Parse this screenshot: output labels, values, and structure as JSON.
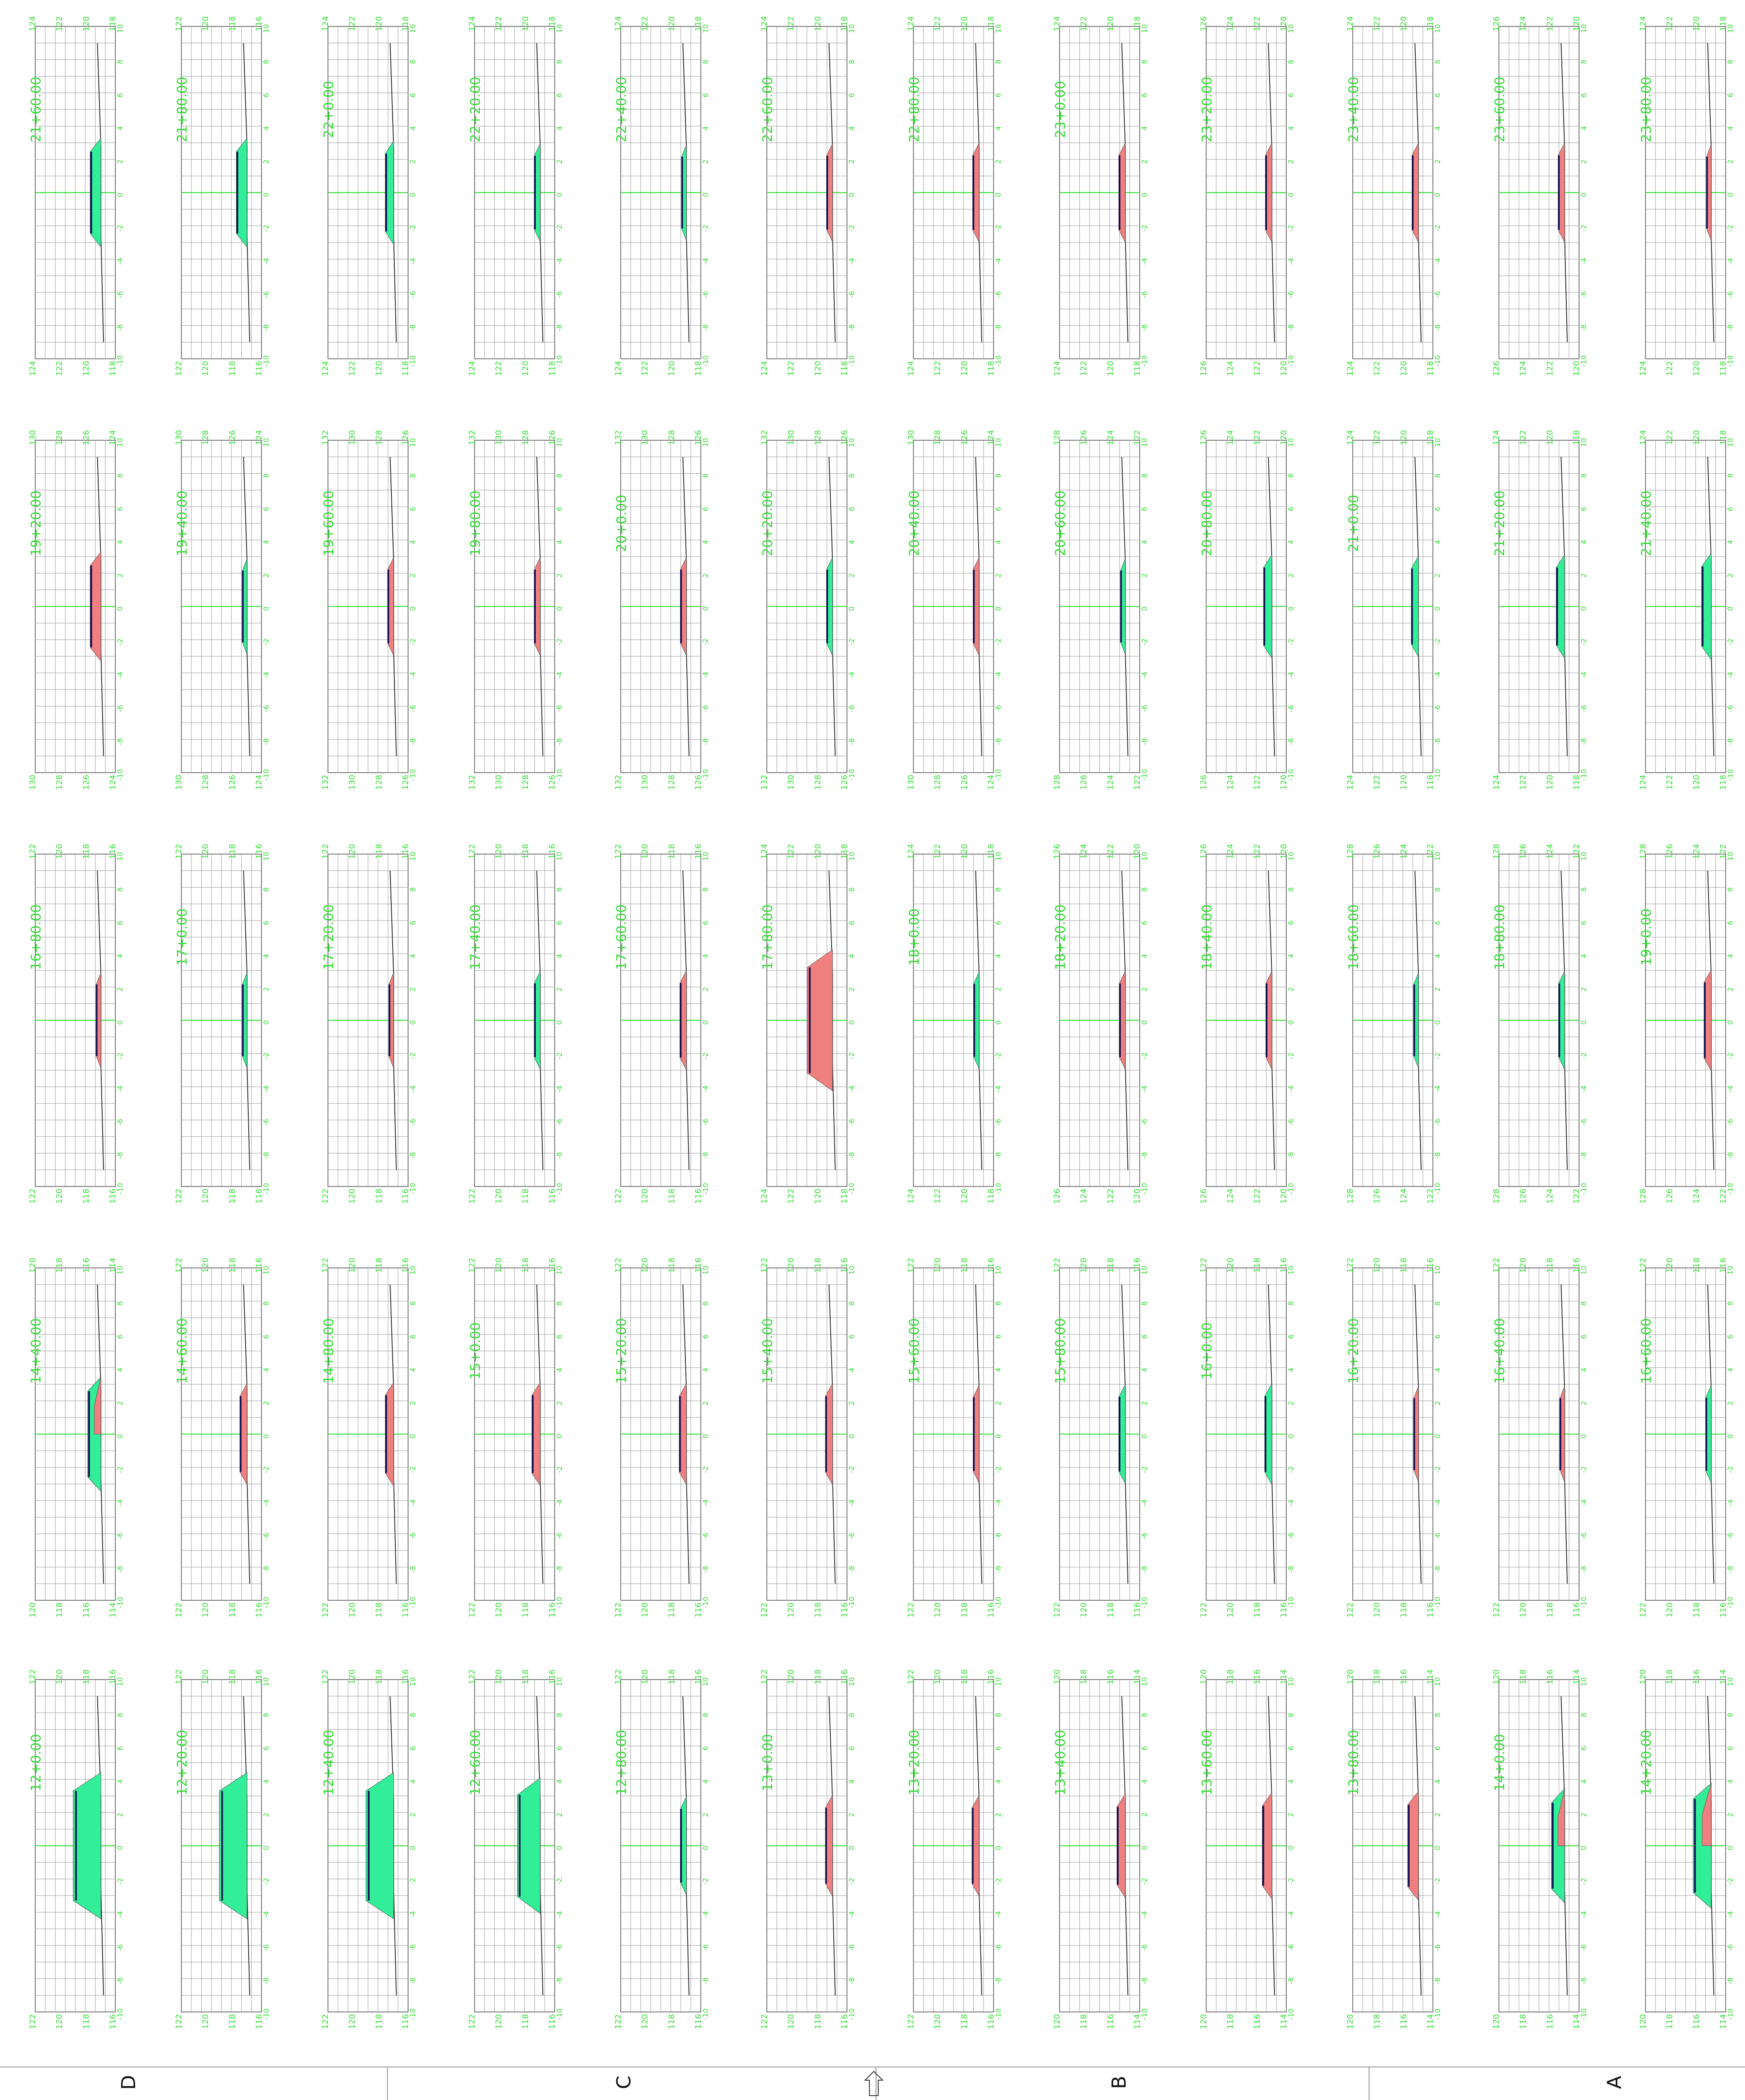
{
  "sheet": {
    "zone_labels": [
      "D",
      "C",
      "B",
      "A"
    ],
    "north_arrow": "north-arrow-icon",
    "colors": {
      "grid": "#9a9a9a",
      "axis": "#22dd22",
      "label": "#33dd33",
      "ground": "#303030",
      "design": "#101050",
      "fill_area": "#33ee99",
      "cut_area": "#f08080"
    }
  },
  "sections": [
    {
      "station": "12+0.00",
      "left_elev": [
        "122",
        "120",
        "118",
        "116"
      ],
      "right_elev": [
        "122",
        "120",
        "118",
        "116"
      ],
      "type": "fill",
      "size": 1.0
    },
    {
      "station": "12+20.00",
      "left_elev": [
        "122",
        "120",
        "118",
        "116"
      ],
      "right_elev": [
        "122",
        "120",
        "118",
        "116"
      ],
      "type": "fill",
      "size": 1.0
    },
    {
      "station": "12+40.00",
      "left_elev": [
        "122",
        "120",
        "118",
        "116"
      ],
      "right_elev": [
        "122",
        "120",
        "118",
        "116"
      ],
      "type": "fill",
      "size": 1.0
    },
    {
      "station": "12+60.00",
      "left_elev": [
        "122",
        "120",
        "118",
        "116"
      ],
      "right_elev": [
        "122",
        "120",
        "118",
        "116"
      ],
      "type": "fill",
      "size": 0.8
    },
    {
      "station": "12+80.00",
      "left_elev": [
        "122",
        "120",
        "118",
        "116"
      ],
      "right_elev": [
        "122",
        "120",
        "118",
        "116"
      ],
      "type": "fill",
      "size": 0.1
    },
    {
      "station": "13+0.00",
      "left_elev": [
        "122",
        "120",
        "118",
        "116"
      ],
      "right_elev": [
        "122",
        "120",
        "118",
        "116"
      ],
      "type": "cut",
      "size": 0.15
    },
    {
      "station": "13+20.00",
      "left_elev": [
        "122",
        "120",
        "118",
        "116"
      ],
      "right_elev": [
        "122",
        "120",
        "118",
        "116"
      ],
      "type": "cut",
      "size": 0.15
    },
    {
      "station": "13+40.00",
      "left_elev": [
        "120",
        "118",
        "116",
        "114"
      ],
      "right_elev": [
        "120",
        "118",
        "116",
        "114"
      ],
      "type": "cut",
      "size": 0.2
    },
    {
      "station": "13+60.00",
      "left_elev": [
        "120",
        "118",
        "116",
        "114"
      ],
      "right_elev": [
        "120",
        "118",
        "116",
        "114"
      ],
      "type": "cut",
      "size": 0.25
    },
    {
      "station": "13+80.00",
      "left_elev": [
        "120",
        "118",
        "116",
        "114"
      ],
      "right_elev": [
        "120",
        "118",
        "116",
        "114"
      ],
      "type": "cut",
      "size": 0.3
    },
    {
      "station": "14+0.00",
      "left_elev": [
        "120",
        "118",
        "116",
        "114"
      ],
      "right_elev": [
        "120",
        "118",
        "116",
        "114"
      ],
      "type": "mixed",
      "size": 0.4
    },
    {
      "station": "14+20.00",
      "left_elev": [
        "120",
        "118",
        "116",
        "114"
      ],
      "right_elev": [
        "120",
        "118",
        "116",
        "114"
      ],
      "type": "mixed",
      "size": 0.6
    },
    {
      "station": "14+40.00",
      "left_elev": [
        "120",
        "118",
        "116",
        "114"
      ],
      "right_elev": [
        "120",
        "118",
        "116",
        "114"
      ],
      "type": "mixed",
      "size": 0.4
    },
    {
      "station": "14+60.00",
      "left_elev": [
        "122",
        "120",
        "118",
        "116"
      ],
      "right_elev": [
        "122",
        "120",
        "118",
        "116"
      ],
      "type": "cut",
      "size": 0.15
    },
    {
      "station": "14+80.00",
      "left_elev": [
        "122",
        "120",
        "118",
        "116"
      ],
      "right_elev": [
        "122",
        "120",
        "118",
        "116"
      ],
      "type": "cut",
      "size": 0.2
    },
    {
      "station": "15+0.00",
      "left_elev": [
        "122",
        "120",
        "118",
        "116"
      ],
      "right_elev": [
        "122",
        "120",
        "118",
        "116"
      ],
      "type": "cut",
      "size": 0.2
    },
    {
      "station": "15+20.00",
      "left_elev": [
        "122",
        "120",
        "118",
        "116"
      ],
      "right_elev": [
        "122",
        "120",
        "118",
        "116"
      ],
      "type": "cut",
      "size": 0.15
    },
    {
      "station": "15+40.00",
      "left_elev": [
        "122",
        "120",
        "118",
        "116"
      ],
      "right_elev": [
        "122",
        "120",
        "118",
        "116"
      ],
      "type": "cut",
      "size": 0.15
    },
    {
      "station": "15+60.00",
      "left_elev": [
        "122",
        "120",
        "118",
        "116"
      ],
      "right_elev": [
        "122",
        "120",
        "118",
        "116"
      ],
      "type": "cut",
      "size": 0.1
    },
    {
      "station": "15+80.00",
      "left_elev": [
        "122",
        "120",
        "118",
        "116"
      ],
      "right_elev": [
        "122",
        "120",
        "118",
        "116"
      ],
      "type": "fill",
      "size": 0.12
    },
    {
      "station": "16+0.00",
      "left_elev": [
        "122",
        "120",
        "118",
        "116"
      ],
      "right_elev": [
        "122",
        "120",
        "118",
        "116"
      ],
      "type": "fill",
      "size": 0.15
    },
    {
      "station": "16+20.00",
      "left_elev": [
        "122",
        "120",
        "118",
        "116"
      ],
      "right_elev": [
        "122",
        "120",
        "118",
        "116"
      ],
      "type": "cut",
      "size": 0.05
    },
    {
      "station": "16+40.00",
      "left_elev": [
        "122",
        "120",
        "118",
        "116"
      ],
      "right_elev": [
        "122",
        "120",
        "118",
        "116"
      ],
      "type": "cut",
      "size": 0.05
    },
    {
      "station": "16+60.00",
      "left_elev": [
        "122",
        "120",
        "118",
        "116"
      ],
      "right_elev": [
        "122",
        "120",
        "118",
        "116"
      ],
      "type": "fill",
      "size": 0.08
    },
    {
      "station": "16+80.00",
      "left_elev": [
        "122",
        "120",
        "118",
        "116"
      ],
      "right_elev": [
        "122",
        "120",
        "118",
        "116"
      ],
      "type": "cut",
      "size": 0.05
    },
    {
      "station": "17+0.00",
      "left_elev": [
        "122",
        "120",
        "118",
        "116"
      ],
      "right_elev": [
        "122",
        "120",
        "118",
        "116"
      ],
      "type": "fill",
      "size": 0.05
    },
    {
      "station": "17+20.00",
      "left_elev": [
        "122",
        "120",
        "118",
        "116"
      ],
      "right_elev": [
        "122",
        "120",
        "118",
        "116"
      ],
      "type": "cut",
      "size": 0.05
    },
    {
      "station": "17+40.00",
      "left_elev": [
        "122",
        "120",
        "118",
        "116"
      ],
      "right_elev": [
        "122",
        "120",
        "118",
        "116"
      ],
      "type": "fill",
      "size": 0.1
    },
    {
      "station": "17+60.00",
      "left_elev": [
        "122",
        "120",
        "118",
        "116"
      ],
      "right_elev": [
        "122",
        "120",
        "118",
        "116"
      ],
      "type": "cut",
      "size": 0.12
    },
    {
      "station": "17+80.00",
      "left_elev": [
        "124",
        "122",
        "120",
        "118"
      ],
      "right_elev": [
        "124",
        "122",
        "120",
        "118"
      ],
      "type": "cut",
      "size": 0.9
    },
    {
      "station": "18+0.00",
      "left_elev": [
        "124",
        "122",
        "120",
        "118"
      ],
      "right_elev": [
        "124",
        "122",
        "120",
        "118"
      ],
      "type": "fill",
      "size": 0.08
    },
    {
      "station": "18+20.00",
      "left_elev": [
        "126",
        "124",
        "122",
        "120"
      ],
      "right_elev": [
        "126",
        "124",
        "122",
        "120"
      ],
      "type": "cut",
      "size": 0.1
    },
    {
      "station": "18+40.00",
      "left_elev": [
        "126",
        "124",
        "122",
        "120"
      ],
      "right_elev": [
        "126",
        "124",
        "122",
        "120"
      ],
      "type": "cut",
      "size": 0.1
    },
    {
      "station": "18+60.00",
      "left_elev": [
        "128",
        "126",
        "124",
        "122"
      ],
      "right_elev": [
        "128",
        "126",
        "124",
        "122"
      ],
      "type": "fill",
      "size": 0.05
    },
    {
      "station": "18+80.00",
      "left_elev": [
        "128",
        "126",
        "124",
        "122"
      ],
      "right_elev": [
        "128",
        "126",
        "124",
        "122"
      ],
      "type": "fill",
      "size": 0.1
    },
    {
      "station": "19+0.00",
      "left_elev": [
        "128",
        "126",
        "124",
        "122"
      ],
      "right_elev": [
        "128",
        "126",
        "124",
        "122"
      ],
      "type": "cut",
      "size": 0.15
    },
    {
      "station": "19+20.00",
      "left_elev": [
        "130",
        "128",
        "126",
        "124"
      ],
      "right_elev": [
        "130",
        "128",
        "126",
        "124"
      ],
      "type": "cut",
      "size": 0.3
    },
    {
      "station": "19+40.00",
      "left_elev": [
        "130",
        "128",
        "126",
        "124"
      ],
      "right_elev": [
        "130",
        "128",
        "126",
        "124"
      ],
      "type": "fill",
      "size": 0.05
    },
    {
      "station": "19+60.00",
      "left_elev": [
        "132",
        "130",
        "128",
        "126"
      ],
      "right_elev": [
        "132",
        "130",
        "128",
        "126"
      ],
      "type": "cut",
      "size": 0.1
    },
    {
      "station": "19+80.00",
      "left_elev": [
        "132",
        "130",
        "128",
        "126"
      ],
      "right_elev": [
        "132",
        "130",
        "128",
        "126"
      ],
      "type": "cut",
      "size": 0.1
    },
    {
      "station": "20+0.00",
      "left_elev": [
        "132",
        "130",
        "128",
        "126"
      ],
      "right_elev": [
        "132",
        "130",
        "128",
        "126"
      ],
      "type": "cut",
      "size": 0.1
    },
    {
      "station": "20+20.00",
      "left_elev": [
        "132",
        "130",
        "128",
        "126"
      ],
      "right_elev": [
        "132",
        "130",
        "128",
        "126"
      ],
      "type": "fill",
      "size": 0.1
    },
    {
      "station": "20+40.00",
      "left_elev": [
        "130",
        "128",
        "126",
        "124"
      ],
      "right_elev": [
        "130",
        "128",
        "126",
        "124"
      ],
      "type": "cut",
      "size": 0.1
    },
    {
      "station": "20+60.00",
      "left_elev": [
        "128",
        "126",
        "124",
        "122"
      ],
      "right_elev": [
        "128",
        "126",
        "124",
        "122"
      ],
      "type": "fill",
      "size": 0.05
    },
    {
      "station": "20+80.00",
      "left_elev": [
        "126",
        "124",
        "122",
        "120"
      ],
      "right_elev": [
        "126",
        "124",
        "122",
        "120"
      ],
      "type": "fill",
      "size": 0.2
    },
    {
      "station": "21+0.00",
      "left_elev": [
        "124",
        "122",
        "120",
        "118"
      ],
      "right_elev": [
        "124",
        "122",
        "120",
        "118"
      ],
      "type": "fill",
      "size": 0.15
    },
    {
      "station": "21+20.00",
      "left_elev": [
        "124",
        "122",
        "120",
        "118"
      ],
      "right_elev": [
        "124",
        "122",
        "120",
        "118"
      ],
      "type": "fill",
      "size": 0.2
    },
    {
      "station": "21+40.00",
      "left_elev": [
        "124",
        "122",
        "120",
        "118"
      ],
      "right_elev": [
        "124",
        "122",
        "120",
        "118"
      ],
      "type": "fill",
      "size": 0.25
    },
    {
      "station": "21+60.00",
      "left_elev": [
        "124",
        "122",
        "120",
        "118"
      ],
      "right_elev": [
        "124",
        "122",
        "120",
        "118"
      ],
      "type": "fill",
      "size": 0.3
    },
    {
      "station": "21+80.00",
      "left_elev": [
        "122",
        "120",
        "118",
        "116"
      ],
      "right_elev": [
        "122",
        "120",
        "118",
        "116"
      ],
      "type": "fill",
      "size": 0.3
    },
    {
      "station": "22+0.00",
      "left_elev": [
        "124",
        "122",
        "120",
        "118"
      ],
      "right_elev": [
        "124",
        "122",
        "120",
        "118"
      ],
      "type": "fill",
      "size": 0.2
    },
    {
      "station": "22+20.00",
      "left_elev": [
        "124",
        "122",
        "120",
        "118"
      ],
      "right_elev": [
        "124",
        "122",
        "120",
        "118"
      ],
      "type": "fill",
      "size": 0.1
    },
    {
      "station": "22+40.00",
      "left_elev": [
        "124",
        "122",
        "120",
        "118"
      ],
      "right_elev": [
        "124",
        "122",
        "120",
        "118"
      ],
      "type": "fill",
      "size": 0.05
    },
    {
      "station": "22+60.00",
      "left_elev": [
        "124",
        "122",
        "120",
        "118"
      ],
      "right_elev": [
        "124",
        "122",
        "120",
        "118"
      ],
      "type": "cut",
      "size": 0.1
    },
    {
      "station": "22+80.00",
      "left_elev": [
        "124",
        "122",
        "120",
        "118"
      ],
      "right_elev": [
        "124",
        "122",
        "120",
        "118"
      ],
      "type": "cut",
      "size": 0.12
    },
    {
      "station": "23+0.00",
      "left_elev": [
        "124",
        "122",
        "120",
        "118"
      ],
      "right_elev": [
        "124",
        "122",
        "120",
        "118"
      ],
      "type": "cut",
      "size": 0.12
    },
    {
      "station": "23+20.00",
      "left_elev": [
        "126",
        "124",
        "122",
        "120"
      ],
      "right_elev": [
        "126",
        "124",
        "122",
        "120"
      ],
      "type": "cut",
      "size": 0.12
    },
    {
      "station": "23+40.00",
      "left_elev": [
        "124",
        "122",
        "120",
        "118"
      ],
      "right_elev": [
        "124",
        "122",
        "120",
        "118"
      ],
      "type": "cut",
      "size": 0.12
    },
    {
      "station": "23+60.00",
      "left_elev": [
        "126",
        "124",
        "122",
        "120"
      ],
      "right_elev": [
        "126",
        "124",
        "122",
        "120"
      ],
      "type": "cut",
      "size": 0.12
    },
    {
      "station": "23+80.00",
      "left_elev": [
        "124",
        "122",
        "120",
        "118"
      ],
      "right_elev": [
        "124",
        "122",
        "120",
        "118"
      ],
      "type": "cut",
      "size": 0.05
    }
  ],
  "offset_ticks": [
    "10",
    "8",
    "6",
    "4",
    "2",
    "0",
    "-2",
    "-4",
    "-6",
    "-8",
    "-10"
  ]
}
